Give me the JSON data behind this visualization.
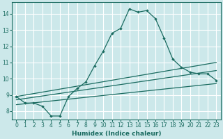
{
  "xlabel": "Humidex (Indice chaleur)",
  "xlim": [
    -0.5,
    23.5
  ],
  "ylim": [
    7.5,
    14.7
  ],
  "yticks": [
    8,
    9,
    10,
    11,
    12,
    13,
    14
  ],
  "xticks": [
    0,
    1,
    2,
    3,
    4,
    5,
    6,
    7,
    8,
    9,
    10,
    11,
    12,
    13,
    14,
    15,
    16,
    17,
    18,
    19,
    20,
    21,
    22,
    23
  ],
  "bg_color": "#cce8ea",
  "grid_color": "#ffffff",
  "line_color": "#1a6b60",
  "line1_x": [
    0,
    1,
    2,
    3,
    4,
    5,
    6,
    7,
    8,
    9,
    10,
    11,
    12,
    13,
    14,
    15,
    16,
    17,
    18,
    19,
    20,
    21,
    22,
    23
  ],
  "line1_y": [
    8.9,
    8.5,
    8.5,
    8.3,
    7.7,
    7.7,
    8.9,
    9.4,
    9.8,
    10.8,
    11.7,
    12.8,
    13.1,
    14.3,
    14.1,
    14.2,
    13.7,
    12.5,
    11.2,
    10.7,
    10.4,
    10.3,
    10.3,
    9.9
  ],
  "line2_x": [
    0,
    23
  ],
  "line2_y": [
    8.9,
    11.0
  ],
  "line3_x": [
    0,
    23
  ],
  "line3_y": [
    8.7,
    10.5
  ],
  "line4_x": [
    0,
    23
  ],
  "line4_y": [
    8.4,
    9.7
  ]
}
